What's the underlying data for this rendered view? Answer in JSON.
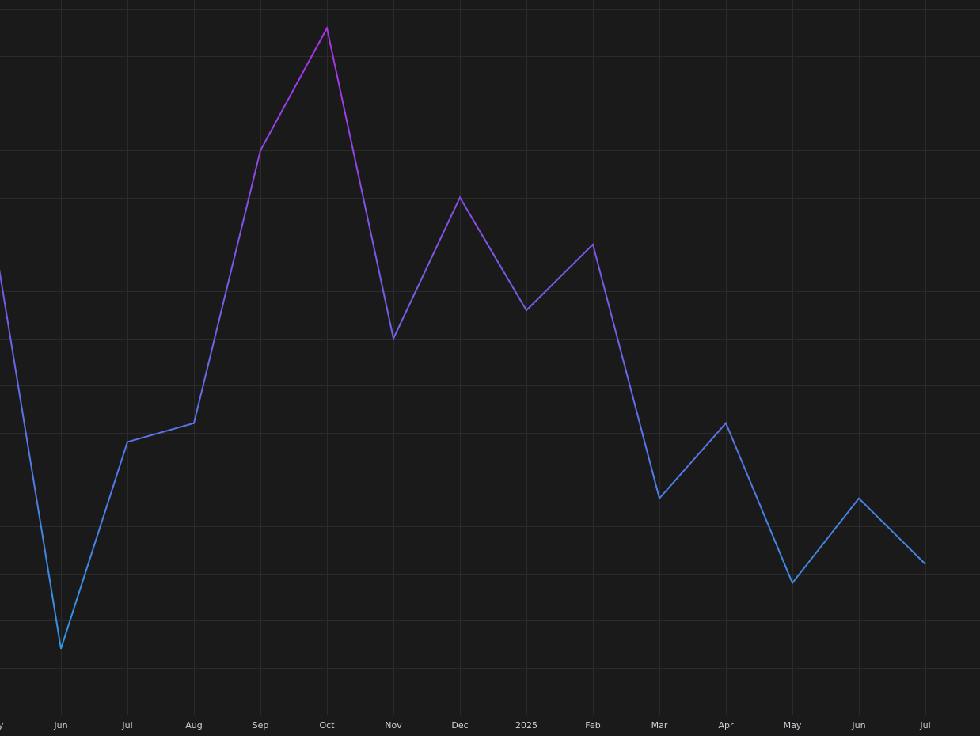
{
  "chart_data": {
    "type": "line",
    "categories": [
      "May",
      "Jun",
      "Jul",
      "Aug",
      "Sep",
      "Oct",
      "Nov",
      "Dec",
      "2025",
      "Feb",
      "Mar",
      "Apr",
      "May",
      "Jun",
      "Jul"
    ],
    "series": [
      {
        "values": [
          10.1,
          1.4,
          5.8,
          6.2,
          12.0,
          14.6,
          8.0,
          11.0,
          8.6,
          10.0,
          4.6,
          6.2,
          2.8,
          4.6,
          3.2
        ]
      }
    ],
    "gradient_colors": [
      "#1fa2e6",
      "#b12ce8"
    ],
    "ylim": [
      0,
      15.2
    ],
    "yticks": [
      1,
      2,
      3,
      4,
      5,
      6,
      7,
      8,
      9,
      10,
      11,
      12,
      13,
      14,
      15
    ],
    "grid": true
  }
}
